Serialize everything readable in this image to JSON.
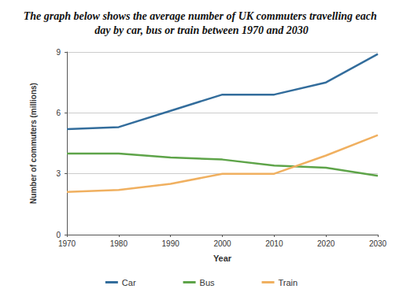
{
  "chart_data": {
    "type": "line",
    "title": "The graph below shows the average number of UK commuters travelling each day by car, bus or train between 1970 and 2030",
    "x_label": "Year",
    "y_label": "Number of commuters (millions)",
    "x": [
      1970,
      1980,
      1990,
      2000,
      2010,
      2020,
      2030
    ],
    "xlim": [
      1970,
      2030
    ],
    "xticks": [
      1970,
      1980,
      1990,
      2000,
      2010,
      2020,
      2030
    ],
    "ylim": [
      0,
      9
    ],
    "yticks": [
      0,
      3,
      6,
      9
    ],
    "grid": true,
    "legend": "bottom",
    "series": [
      {
        "name": "Car",
        "color": "#336d9c",
        "values": [
          5.2,
          5.3,
          6.1,
          6.9,
          6.9,
          7.5,
          8.9
        ]
      },
      {
        "name": "Bus",
        "color": "#5ea449",
        "values": [
          4.0,
          4.0,
          3.8,
          3.7,
          3.4,
          3.3,
          2.9
        ]
      },
      {
        "name": "Train",
        "color": "#f0b060",
        "values": [
          2.1,
          2.2,
          2.5,
          3.0,
          3.0,
          3.9,
          4.9
        ]
      }
    ]
  }
}
